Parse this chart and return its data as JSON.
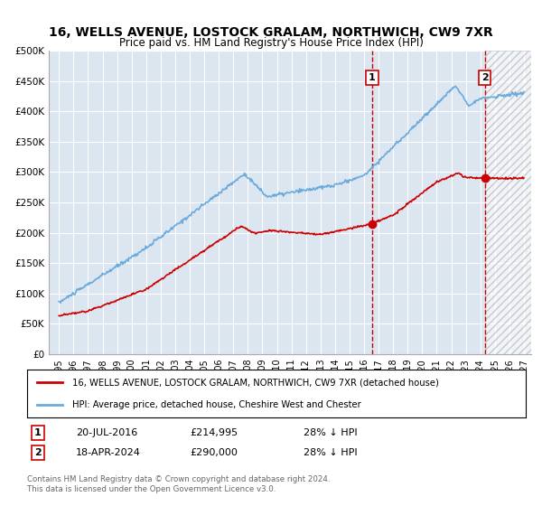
{
  "title": "16, WELLS AVENUE, LOSTOCK GRALAM, NORTHWICH, CW9 7XR",
  "subtitle": "Price paid vs. HM Land Registry's House Price Index (HPI)",
  "title_fontsize": 10,
  "subtitle_fontsize": 8.5,
  "background_color": "#ffffff",
  "plot_bg_color": "#dce6f1",
  "grid_color": "#ffffff",
  "ylim": [
    0,
    500000
  ],
  "yticks": [
    0,
    50000,
    100000,
    150000,
    200000,
    250000,
    300000,
    350000,
    400000,
    450000,
    500000
  ],
  "ytick_labels": [
    "£0",
    "£50K",
    "£100K",
    "£150K",
    "£200K",
    "£250K",
    "£300K",
    "£350K",
    "£400K",
    "£450K",
    "£500K"
  ],
  "hpi_color": "#6aaadd",
  "price_color": "#cc0000",
  "sale1_date": "20-JUL-2016",
  "sale1_price": "£214,995",
  "sale1_hpi_pct": "28% ↓ HPI",
  "sale2_date": "18-APR-2024",
  "sale2_price": "£290,000",
  "sale2_hpi_pct": "28% ↓ HPI",
  "sale1_x": 2016.55,
  "sale2_x": 2024.3,
  "sale1_marker_y": 214995,
  "sale2_marker_y": 290000,
  "legend_label1": "16, WELLS AVENUE, LOSTOCK GRALAM, NORTHWICH, CW9 7XR (detached house)",
  "legend_label2": "HPI: Average price, detached house, Cheshire West and Chester",
  "footer1": "Contains HM Land Registry data © Crown copyright and database right 2024.",
  "footer2": "This data is licensed under the Open Government Licence v3.0.",
  "xlim_left": 1994.3,
  "xlim_right": 2027.5,
  "xtick_start": 1995,
  "xtick_end": 2027,
  "xtick_step": 1
}
